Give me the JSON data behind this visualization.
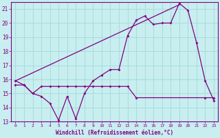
{
  "background_color": "#c8eef0",
  "grid_color": "#aadddd",
  "line_color": "#800080",
  "xlim": [
    -0.5,
    23.5
  ],
  "ylim": [
    13,
    21.5
  ],
  "yticks": [
    13,
    14,
    15,
    16,
    17,
    18,
    19,
    20,
    21
  ],
  "xticks": [
    0,
    1,
    2,
    3,
    4,
    5,
    6,
    7,
    8,
    9,
    10,
    11,
    12,
    13,
    14,
    15,
    16,
    17,
    18,
    19,
    20,
    21,
    22,
    23
  ],
  "xlabel": "Windchill (Refroidissement éolien,°C)",
  "line1_x": [
    0,
    1,
    2,
    3,
    4,
    5,
    6,
    7,
    8,
    9,
    10,
    11,
    12,
    13,
    14,
    15,
    16,
    17,
    18,
    19,
    20,
    21,
    22,
    23
  ],
  "line1_y": [
    15.9,
    15.6,
    15.0,
    14.8,
    14.3,
    13.1,
    14.8,
    13.2,
    15.0,
    15.9,
    16.3,
    16.7,
    16.7,
    19.1,
    20.2,
    20.5,
    19.9,
    20.0,
    20.0,
    21.4,
    20.9,
    18.6,
    15.9,
    14.5
  ],
  "line2_x": [
    0,
    1,
    2,
    3,
    4,
    5,
    6,
    7,
    8,
    9,
    10,
    11,
    12,
    13,
    14,
    22,
    23
  ],
  "line2_y": [
    15.6,
    15.6,
    15.0,
    15.5,
    15.5,
    15.5,
    15.5,
    15.5,
    15.5,
    15.5,
    15.5,
    15.5,
    15.5,
    15.5,
    14.7,
    14.7,
    14.7
  ],
  "line3_x": [
    0,
    19
  ],
  "line3_y": [
    15.9,
    21.3
  ]
}
